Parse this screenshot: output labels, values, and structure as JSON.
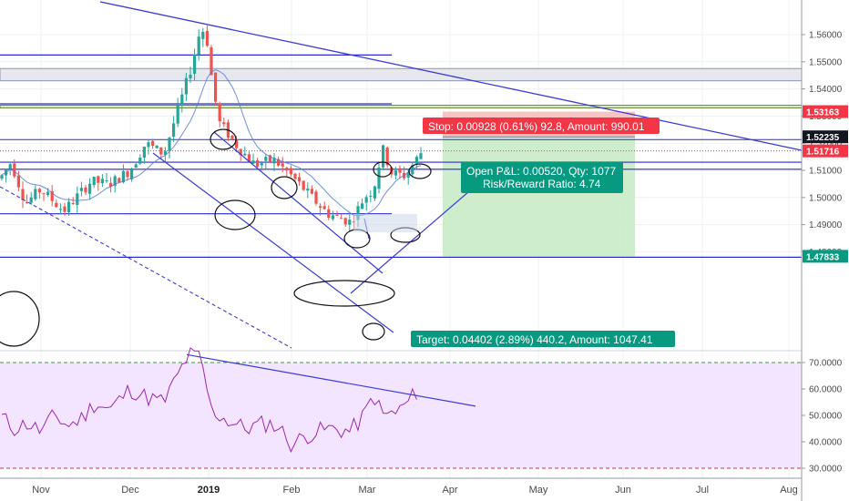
{
  "chart_data": {
    "type": "candlestick",
    "symbol": "",
    "x_ticks": [
      "Nov",
      "Dec",
      "2019",
      "Feb",
      "Mar",
      "Apr",
      "May",
      "Jun",
      "Jul",
      "Aug"
    ],
    "price_axis": {
      "range": [
        1.47,
        1.57
      ],
      "ticks": [
        "1.56000",
        "1.55000",
        "1.54000",
        "1.53000",
        "1.52000",
        "1.51000",
        "1.50000",
        "1.49000",
        "1.48000"
      ],
      "price_labels": [
        {
          "value": "1.53163",
          "color": "#f23645"
        },
        {
          "value": "1.52235",
          "color": "#131722"
        },
        {
          "value": "1.51716",
          "color": "#f23645"
        },
        {
          "value": "1.47833",
          "color": "#089981"
        }
      ]
    },
    "rsi": {
      "range": [
        28,
        76
      ],
      "ticks": [
        "70.0000",
        "60.0000",
        "50.0000",
        "40.0000",
        "30.0000"
      ],
      "overbought": 70,
      "oversold": 30
    },
    "position": {
      "stop_label": "Stop: 0.00928 (0.61%) 92.8, Amount: 990.01",
      "pnl_label": "Open P&L: 0.00520, Qty: 1077",
      "rr_label": "Risk/Reward Ratio: 4.74",
      "target_label": "Target: 0.04402 (2.89%) 440.2, Amount: 1047.41",
      "entry": 1.52235,
      "stop": 1.53163,
      "target": 1.47833,
      "current": 1.51716
    },
    "horizontal_levels": [
      1.5525,
      1.5345,
      1.5104,
      1.513,
      1.494,
      1.478
    ],
    "zones": [
      {
        "top": 1.5475,
        "bottom": 1.543
      },
      {
        "top": 1.534,
        "bottom": 1.533
      }
    ],
    "colors": {
      "up": "#26a69a",
      "down": "#ef5350",
      "trendline": "#3b3bd4",
      "rsi_line": "#9c27b0",
      "rsi_band": "#f3e5ff"
    }
  }
}
